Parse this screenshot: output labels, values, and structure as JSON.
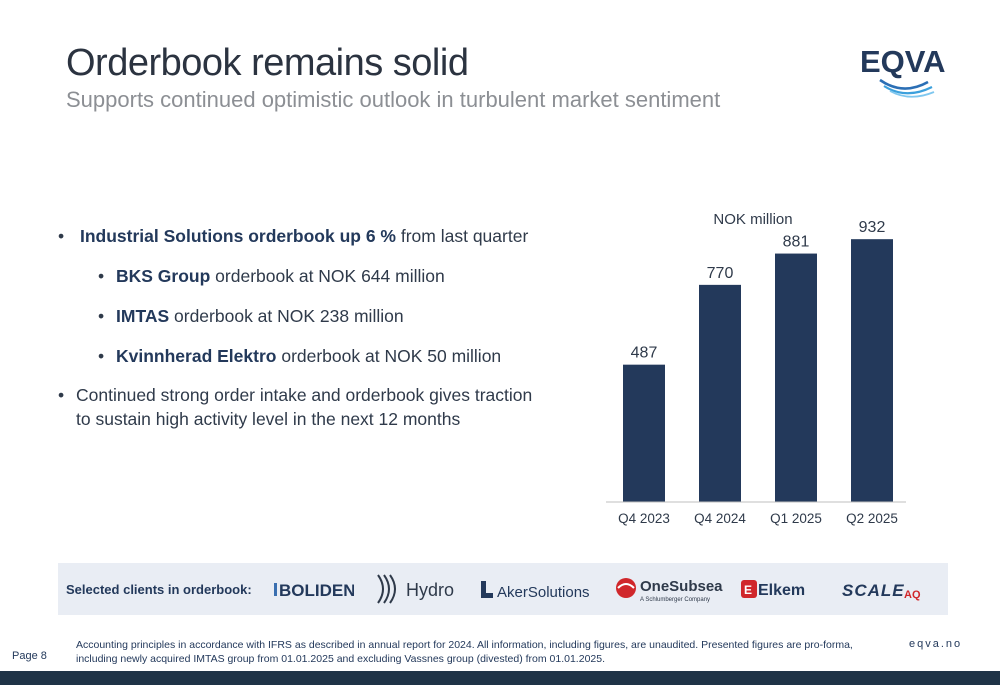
{
  "header": {
    "title": "Orderbook remains solid",
    "subtitle": "Supports continued optimistic outlook in turbulent market sentiment",
    "logo_text": "EQVA"
  },
  "bullets": {
    "main": {
      "bold": "Industrial Solutions orderbook up 6 %",
      "rest": " from last quarter"
    },
    "subs": [
      {
        "bold": "BKS Group",
        "rest": " orderbook at NOK 644 million"
      },
      {
        "bold": "IMTAS",
        "rest": " orderbook at NOK 238 million"
      },
      {
        "bold": "Kvinnherad Elektro",
        "rest": " orderbook at NOK 50 million"
      }
    ],
    "second": "Continued strong order intake and orderbook gives traction to sustain high activity level in the next 12 months"
  },
  "chart_data": {
    "type": "bar",
    "title": "NOK million",
    "categories": [
      "Q4 2023",
      "Q4 2024",
      "Q1 2025",
      "Q2 2025"
    ],
    "values": [
      487,
      770,
      881,
      932
    ],
    "ylim": [
      0,
      1000
    ],
    "grid": false,
    "bar_color": "#23395b"
  },
  "clients": {
    "label": "Selected clients in orderbook:",
    "logos": [
      "BOLIDEN",
      "Hydro",
      "AkerSolutions",
      "OneSubsea",
      "A Schlumberger Company",
      "Elkem",
      "SCALE",
      "AQ"
    ]
  },
  "footer": {
    "page": "Page 8",
    "note": "Accounting principles in accordance with IFRS as described in annual report for 2024. All information, including figures, are unaudited. Presented figures are pro-forma, including newly acquired IMTAS group from 01.01.2025 and excluding Vassnes group (divested) from 01.01.2025.",
    "site": "eqva.no"
  },
  "colors": {
    "navy": "#23395b",
    "text": "#2f3a4a",
    "grey": "#8c8f94",
    "panel": "#e9edf4"
  }
}
